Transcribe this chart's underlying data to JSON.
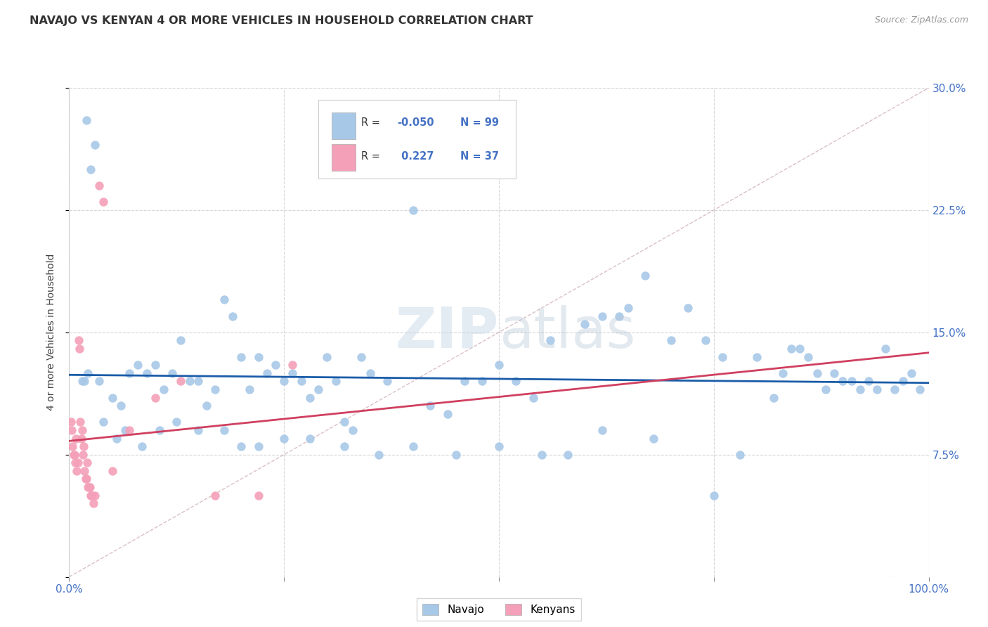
{
  "title": "NAVAJO VS KENYAN 4 OR MORE VEHICLES IN HOUSEHOLD CORRELATION CHART",
  "source": "Source: ZipAtlas.com",
  "ylabel": "4 or more Vehicles in Household",
  "xlim": [
    0,
    100
  ],
  "ylim": [
    0,
    30
  ],
  "yticks": [
    0,
    7.5,
    15.0,
    22.5,
    30.0
  ],
  "xticks": [
    0,
    25,
    50,
    75,
    100
  ],
  "xtick_labels": [
    "0.0%",
    "",
    "",
    "",
    "100.0%"
  ],
  "ytick_labels_right": [
    "",
    "7.5%",
    "15.0%",
    "22.5%",
    "30.0%"
  ],
  "navajo_R": -0.05,
  "navajo_N": 99,
  "kenyan_R": 0.227,
  "kenyan_N": 37,
  "navajo_color": "#a8c8e8",
  "kenyan_color": "#f4a0b8",
  "navajo_line_color": "#1a5ca8",
  "kenyan_line_color": "#d04060",
  "ref_line_color": "#d0b0b8",
  "watermark": "ZIPatlas",
  "background_color": "#ffffff",
  "navajo_x": [
    2.0,
    2.5,
    3.0,
    4.0,
    5.0,
    5.5,
    6.0,
    7.0,
    8.0,
    9.0,
    10.0,
    11.0,
    12.0,
    13.0,
    14.0,
    15.0,
    16.0,
    17.0,
    18.0,
    19.0,
    20.0,
    21.0,
    22.0,
    23.0,
    24.0,
    25.0,
    26.0,
    27.0,
    28.0,
    29.0,
    30.0,
    31.0,
    32.0,
    33.0,
    34.0,
    35.0,
    37.0,
    40.0,
    42.0,
    44.0,
    46.0,
    48.0,
    50.0,
    52.0,
    54.0,
    56.0,
    58.0,
    60.0,
    62.0,
    64.0,
    65.0,
    67.0,
    70.0,
    72.0,
    74.0,
    76.0,
    78.0,
    80.0,
    82.0,
    83.0,
    84.0,
    85.0,
    86.0,
    87.0,
    88.0,
    89.0,
    90.0,
    91.0,
    92.0,
    93.0,
    94.0,
    95.0,
    96.0,
    97.0,
    98.0,
    99.0,
    1.5,
    1.8,
    2.2,
    3.5,
    6.5,
    8.5,
    10.5,
    12.5,
    15.0,
    18.0,
    20.0,
    22.0,
    25.0,
    28.0,
    32.0,
    36.0,
    40.0,
    45.0,
    50.0,
    55.0,
    62.0,
    68.0,
    75.0
  ],
  "navajo_y": [
    28.0,
    25.0,
    26.5,
    9.5,
    11.0,
    8.5,
    10.5,
    12.5,
    13.0,
    12.5,
    13.0,
    11.5,
    12.5,
    14.5,
    12.0,
    12.0,
    10.5,
    11.5,
    17.0,
    16.0,
    13.5,
    11.5,
    13.5,
    12.5,
    13.0,
    12.0,
    12.5,
    12.0,
    11.0,
    11.5,
    13.5,
    12.0,
    9.5,
    9.0,
    13.5,
    12.5,
    12.0,
    22.5,
    10.5,
    10.0,
    12.0,
    12.0,
    13.0,
    12.0,
    11.0,
    14.5,
    7.5,
    15.5,
    16.0,
    16.0,
    16.5,
    18.5,
    14.5,
    16.5,
    14.5,
    13.5,
    7.5,
    13.5,
    11.0,
    12.5,
    14.0,
    14.0,
    13.5,
    12.5,
    11.5,
    12.5,
    12.0,
    12.0,
    11.5,
    12.0,
    11.5,
    14.0,
    11.5,
    12.0,
    12.5,
    11.5,
    12.0,
    12.0,
    12.5,
    12.0,
    9.0,
    8.0,
    9.0,
    9.5,
    9.0,
    9.0,
    8.0,
    8.0,
    8.5,
    8.5,
    8.0,
    7.5,
    8.0,
    7.5,
    8.0,
    7.5,
    9.0,
    8.5,
    5.0
  ],
  "kenyan_x": [
    0.2,
    0.3,
    0.4,
    0.5,
    0.6,
    0.7,
    0.8,
    0.9,
    1.0,
    1.1,
    1.2,
    1.3,
    1.4,
    1.5,
    1.6,
    1.7,
    1.8,
    1.9,
    2.0,
    2.1,
    2.2,
    2.3,
    2.4,
    2.5,
    2.6,
    2.7,
    2.8,
    3.0,
    3.5,
    4.0,
    5.0,
    7.0,
    10.0,
    13.0,
    17.0,
    22.0,
    26.0
  ],
  "kenyan_y": [
    9.5,
    9.0,
    8.0,
    7.5,
    7.5,
    7.0,
    8.5,
    6.5,
    7.0,
    14.5,
    14.0,
    9.5,
    8.5,
    9.0,
    7.5,
    8.0,
    6.5,
    6.0,
    6.0,
    7.0,
    5.5,
    5.5,
    5.5,
    5.0,
    5.0,
    5.0,
    4.5,
    5.0,
    24.0,
    23.0,
    6.5,
    9.0,
    11.0,
    12.0,
    5.0,
    5.0,
    13.0
  ]
}
